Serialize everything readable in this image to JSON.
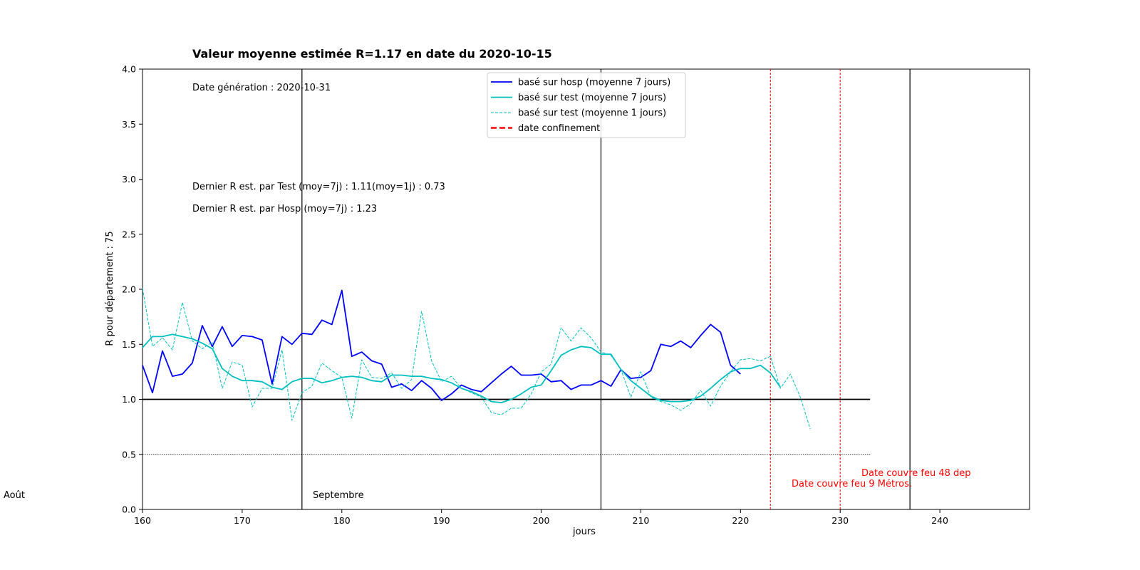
{
  "chart_data": {
    "type": "line",
    "title": "Valeur moyenne estimée R=1.17 en date du  2020-10-15",
    "xlabel": "jours",
    "ylabel": "R pour département : 75",
    "xlim": [
      160,
      249
    ],
    "ylim": [
      0,
      4
    ],
    "xticks": [
      160,
      170,
      180,
      190,
      200,
      210,
      220,
      230,
      240
    ],
    "yticks": [
      0.0,
      0.5,
      1.0,
      1.5,
      2.0,
      2.5,
      3.0,
      3.5,
      4.0
    ],
    "grid": false,
    "legend_position": "top-center",
    "annotations": {
      "generation": "Date génération : 2020-10-31",
      "last_test": "Dernier R est. par Test    (moy=7j) : 1.11(moy=1j) : 0.73",
      "last_hosp": "Dernier R est. par Hosp    (moy=7j) : 1.23",
      "month_aout": "Août",
      "month_sept": "Septembre",
      "couvre_feu_48": "Date couvre feu 48 dep",
      "couvre_feu_9": "Date couvre feu 9 Métros."
    },
    "reference_lines": {
      "y_solid": 1.0,
      "y_dotted": 0.5,
      "h_line_xmax": 233,
      "vertical_black": [
        176,
        206,
        237
      ],
      "vertical_red_dashed": [
        223,
        230
      ]
    },
    "series": [
      {
        "name": "basé sur hosp (moyenne 7 jours)",
        "color": "#0000ff",
        "style": "solid",
        "x": [
          160,
          161,
          162,
          163,
          164,
          165,
          166,
          167,
          168,
          169,
          170,
          171,
          172,
          173,
          174,
          175,
          176,
          177,
          178,
          179,
          180,
          181,
          182,
          183,
          184,
          185,
          186,
          187,
          188,
          189,
          190,
          191,
          192,
          193,
          194,
          195,
          196,
          197,
          198,
          199,
          200,
          201,
          202,
          203,
          204,
          205,
          206,
          207,
          208,
          209,
          210,
          211,
          212,
          213,
          214,
          215,
          216,
          217,
          218,
          219,
          220
        ],
        "values": [
          1.31,
          1.06,
          1.44,
          1.21,
          1.23,
          1.33,
          1.67,
          1.48,
          1.66,
          1.48,
          1.58,
          1.57,
          1.54,
          1.14,
          1.57,
          1.5,
          1.6,
          1.59,
          1.72,
          1.68,
          1.99,
          1.39,
          1.43,
          1.35,
          1.32,
          1.11,
          1.14,
          1.08,
          1.17,
          1.1,
          0.99,
          1.05,
          1.13,
          1.09,
          1.07,
          1.15,
          1.23,
          1.3,
          1.22,
          1.22,
          1.23,
          1.16,
          1.17,
          1.09,
          1.13,
          1.13,
          1.17,
          1.12,
          1.27,
          1.19,
          1.2,
          1.26,
          1.5,
          1.48,
          1.53,
          1.47,
          1.58,
          1.68,
          1.61,
          1.31,
          1.23
        ]
      },
      {
        "name": "basé sur test (moyenne 7 jours)",
        "color": "#00bfbf",
        "style": "solid",
        "x": [
          160,
          161,
          162,
          163,
          164,
          165,
          166,
          167,
          168,
          169,
          170,
          171,
          172,
          173,
          174,
          175,
          176,
          177,
          178,
          179,
          180,
          181,
          182,
          183,
          184,
          185,
          186,
          187,
          188,
          189,
          190,
          191,
          192,
          193,
          194,
          195,
          196,
          197,
          198,
          199,
          200,
          201,
          202,
          203,
          204,
          205,
          206,
          207,
          208,
          209,
          210,
          211,
          212,
          213,
          214,
          215,
          216,
          217,
          218,
          219,
          220,
          221,
          222,
          223,
          224
        ],
        "values": [
          1.47,
          1.57,
          1.57,
          1.59,
          1.57,
          1.55,
          1.51,
          1.46,
          1.28,
          1.21,
          1.17,
          1.17,
          1.16,
          1.11,
          1.09,
          1.16,
          1.19,
          1.19,
          1.15,
          1.17,
          1.2,
          1.21,
          1.2,
          1.17,
          1.16,
          1.22,
          1.22,
          1.21,
          1.21,
          1.19,
          1.18,
          1.15,
          1.1,
          1.07,
          1.03,
          0.98,
          0.97,
          1.0,
          1.05,
          1.11,
          1.13,
          1.26,
          1.4,
          1.45,
          1.48,
          1.47,
          1.41,
          1.41,
          1.27,
          1.17,
          1.1,
          1.03,
          0.99,
          0.98,
          0.98,
          0.99,
          1.03,
          1.1,
          1.18,
          1.25,
          1.28,
          1.28,
          1.31,
          1.24,
          1.11
        ]
      },
      {
        "name": "basé sur test (moyenne 1 jours)",
        "color": "#00bfbf",
        "style": "dashed",
        "x": [
          160,
          161,
          162,
          163,
          164,
          165,
          166,
          167,
          168,
          169,
          170,
          171,
          172,
          173,
          174,
          175,
          176,
          177,
          178,
          179,
          180,
          181,
          182,
          183,
          184,
          185,
          186,
          187,
          188,
          189,
          190,
          191,
          192,
          193,
          194,
          195,
          196,
          197,
          198,
          199,
          200,
          201,
          202,
          203,
          204,
          205,
          206,
          207,
          208,
          209,
          210,
          211,
          212,
          213,
          214,
          215,
          216,
          217,
          218,
          219,
          220,
          221,
          222,
          223,
          224,
          225,
          226,
          227
        ],
        "values": [
          2.01,
          1.48,
          1.56,
          1.45,
          1.88,
          1.53,
          1.46,
          1.52,
          1.1,
          1.34,
          1.31,
          0.93,
          1.1,
          1.1,
          1.45,
          0.81,
          1.06,
          1.12,
          1.33,
          1.26,
          1.2,
          0.83,
          1.36,
          1.2,
          1.19,
          1.24,
          1.1,
          1.18,
          1.8,
          1.35,
          1.16,
          1.21,
          1.1,
          1.06,
          1.02,
          0.88,
          0.86,
          0.92,
          0.92,
          1.05,
          1.25,
          1.32,
          1.65,
          1.53,
          1.65,
          1.56,
          1.43,
          1.4,
          1.27,
          1.02,
          1.25,
          1.02,
          0.98,
          0.95,
          0.9,
          0.96,
          1.08,
          0.94,
          1.12,
          1.25,
          1.36,
          1.37,
          1.35,
          1.39,
          1.1,
          1.23,
          1.02,
          0.73
        ]
      },
      {
        "name": "date confinement",
        "color": "#ff0000",
        "style": "dashed",
        "x": [],
        "values": []
      }
    ]
  }
}
